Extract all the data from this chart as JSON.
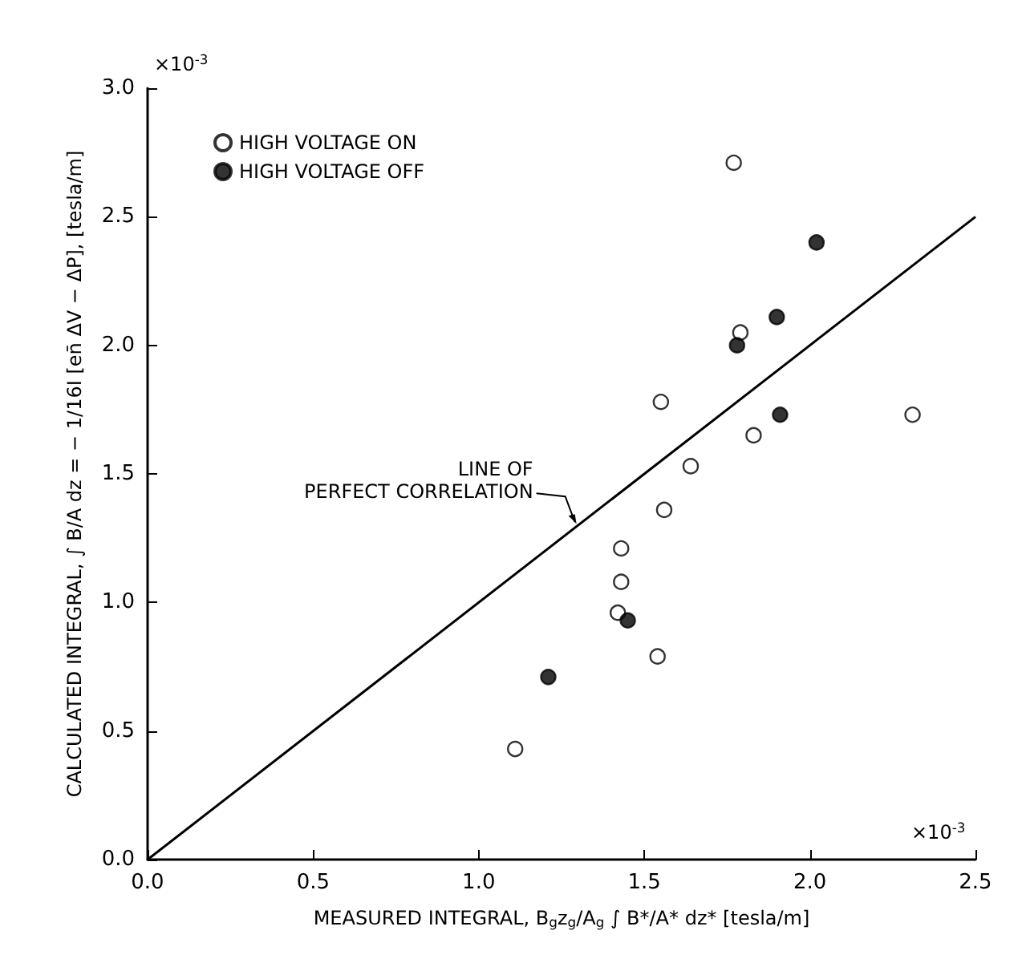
{
  "chart_data": {
    "type": "scatter",
    "xlabel": "MEASURED INTEGRAL, B$_{g}$z$_{g}$/A$_{g}$ ∫ B*/A* dz* [tesla/m]",
    "ylabel": "CALCULATED INTEGRAL, ∫ B/A dz = − 1/16I [en̄ ΔV − ΔP], [tesla/m]",
    "series": [
      {
        "name": "HIGH VOLTAGE ON",
        "marker": "circle",
        "color": "#ffffff",
        "x": [
          1.77,
          1.79,
          1.55,
          2.31,
          1.83,
          1.64,
          1.56,
          1.43,
          1.43,
          1.42,
          1.54,
          1.11
        ],
        "values": [
          2.71,
          2.05,
          1.78,
          1.73,
          1.65,
          1.53,
          1.36,
          1.21,
          1.08,
          0.96,
          0.79,
          0.43
        ]
      },
      {
        "name": "HIGH VOLTAGE OFF",
        "marker": "circle",
        "color": "#000000",
        "x": [
          2.02,
          1.9,
          1.78,
          1.91,
          1.45,
          1.21
        ],
        "values": [
          2.4,
          2.11,
          2.0,
          1.73,
          0.93,
          0.71
        ]
      },
      {
        "type": "line",
        "color": "#000000",
        "line_style": "solid",
        "marker": "none",
        "x": [
          0,
          2.5
        ],
        "values": [
          0,
          2.5
        ]
      }
    ],
    "xlim": [
      0,
      2.5
    ],
    "ylim": [
      0,
      3
    ],
    "xticks": [
      {
        "value": 0,
        "label": "0.0"
      },
      0.5,
      {
        "value": 1,
        "label": "1.0"
      },
      1.5,
      {
        "value": 2,
        "label": "2.0"
      },
      2.5
    ],
    "yticks": [
      {
        "value": 0,
        "label": "0.0"
      },
      0.5,
      {
        "value": 1,
        "label": "1.0"
      },
      1.5,
      {
        "value": 2,
        "label": "2.0"
      },
      2.5,
      {
        "value": 3,
        "label": "3.0"
      }
    ],
    "grid": false,
    "legend": "top left",
    "annotations": [
      {
        "text": "LINE OF\nPERFECT CORRELATION",
        "x": 1.3,
        "y": 1.3
      },
      "×10$^{-3}$",
      "×10$^{-3}$"
    ]
  }
}
